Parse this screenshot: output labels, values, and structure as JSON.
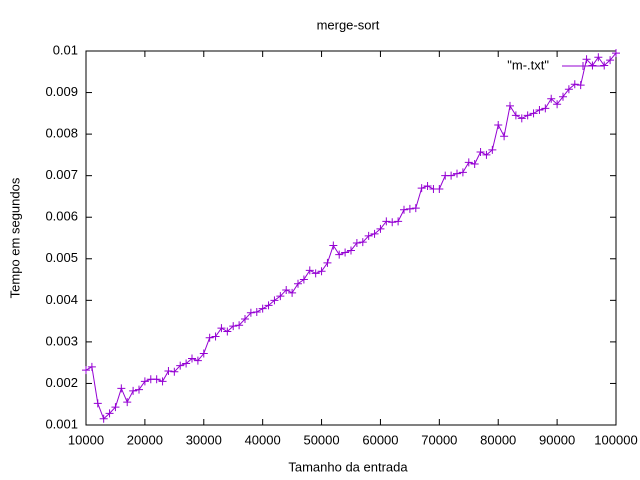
{
  "chart_data": {
    "type": "line",
    "title": "merge-sort",
    "x_label": "Tamanho da entrada",
    "y_label": "Tempo em segundos",
    "x": [
      10000,
      11000,
      12000,
      13000,
      14000,
      15000,
      16000,
      17000,
      18000,
      19000,
      20000,
      21000,
      22000,
      23000,
      24000,
      25000,
      26000,
      27000,
      28000,
      29000,
      30000,
      31000,
      32000,
      33000,
      34000,
      35000,
      36000,
      37000,
      38000,
      39000,
      40000,
      41000,
      42000,
      43000,
      44000,
      45000,
      46000,
      47000,
      48000,
      49000,
      50000,
      51000,
      52000,
      53000,
      54000,
      55000,
      56000,
      57000,
      58000,
      59000,
      60000,
      61000,
      62000,
      63000,
      64000,
      65000,
      66000,
      67000,
      68000,
      69000,
      70000,
      71000,
      72000,
      73000,
      74000,
      75000,
      76000,
      77000,
      78000,
      79000,
      80000,
      81000,
      82000,
      83000,
      84000,
      85000,
      86000,
      87000,
      88000,
      89000,
      90000,
      91000,
      92000,
      93000,
      94000,
      95000,
      96000,
      97000,
      98000,
      99000,
      100000
    ],
    "series": [
      {
        "name": "\"m-.txt\"",
        "color": "#9400d3",
        "values": [
          0.00232,
          0.0024,
          0.00152,
          0.00115,
          0.00128,
          0.00143,
          0.00188,
          0.00155,
          0.00182,
          0.00185,
          0.00205,
          0.0021,
          0.0021,
          0.00205,
          0.0023,
          0.00228,
          0.00243,
          0.00248,
          0.0026,
          0.00255,
          0.00272,
          0.0031,
          0.00313,
          0.00333,
          0.00325,
          0.00338,
          0.0034,
          0.00355,
          0.0037,
          0.00372,
          0.0038,
          0.00388,
          0.004,
          0.0041,
          0.00425,
          0.00418,
          0.0044,
          0.0045,
          0.00472,
          0.00465,
          0.0047,
          0.0049,
          0.00532,
          0.0051,
          0.00515,
          0.0052,
          0.00538,
          0.0054,
          0.00555,
          0.0056,
          0.00572,
          0.0059,
          0.00588,
          0.0059,
          0.00618,
          0.0062,
          0.00622,
          0.0067,
          0.00675,
          0.00668,
          0.00668,
          0.007,
          0.007,
          0.00705,
          0.00708,
          0.00732,
          0.00728,
          0.00757,
          0.0075,
          0.00762,
          0.00822,
          0.00795,
          0.00868,
          0.00845,
          0.00838,
          0.00845,
          0.0085,
          0.00858,
          0.00862,
          0.00885,
          0.00872,
          0.0089,
          0.00908,
          0.0092,
          0.00918,
          0.0098,
          0.00965,
          0.00985,
          0.00965,
          0.00978,
          0.00995
        ]
      }
    ],
    "xlim": [
      10000,
      100000
    ],
    "xticks": [
      10000,
      20000,
      30000,
      40000,
      50000,
      60000,
      70000,
      80000,
      90000,
      100000
    ],
    "ylim": [
      0.001,
      0.01
    ],
    "yticks": [
      0.001,
      0.002,
      0.003,
      0.004,
      0.005,
      0.006,
      0.007,
      0.008,
      0.009,
      0.01
    ],
    "legend": "top-right",
    "grid": false
  }
}
